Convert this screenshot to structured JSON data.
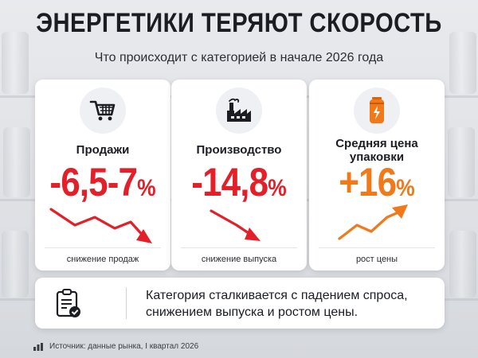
{
  "title": "ЭНЕРГЕТИКИ ТЕРЯЮТ СКОРОСТЬ",
  "subtitle": "Что происходит с категорией в начале 2026 года",
  "colors": {
    "red": "#e3202a",
    "orange": "#f07a1a",
    "dark": "#1b1d22"
  },
  "cards": [
    {
      "icon": "shopping-cart-icon",
      "label": "Продажи",
      "value": "-6,5-7",
      "unit": "%",
      "trend": "down",
      "footer": "снижение продаж"
    },
    {
      "icon": "factory-icon",
      "label": "Производство",
      "value": "-14,8",
      "unit": "%",
      "trend": "down",
      "footer": "снижение выпуска"
    },
    {
      "icon": "energy-drink-can-icon",
      "label_line1": "Средняя цена",
      "label_line2": "упаковки",
      "value": "+16",
      "unit": "%",
      "trend": "up",
      "footer": "рост цены"
    }
  ],
  "summary": {
    "icon": "clipboard-check-icon",
    "line1": "Категория сталкивается с падением спроса,",
    "line2": "снижением выпуска и ростом цены."
  },
  "source": {
    "icon": "bar-chart-icon",
    "text": "Источник: данные рынка, I квартал 2026"
  }
}
